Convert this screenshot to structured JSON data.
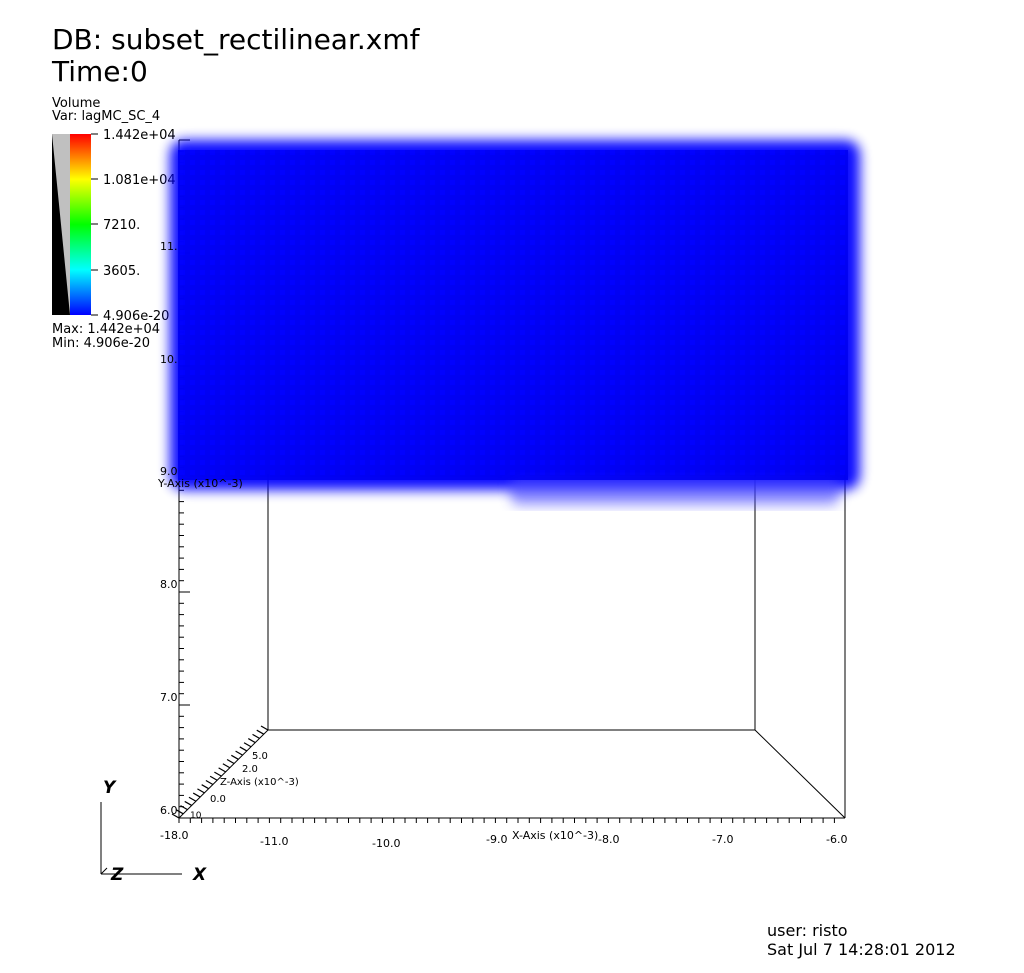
{
  "header": {
    "db": "DB: subset_rectilinear.xmf",
    "time": "Time:0"
  },
  "legend": {
    "plot_type": "Volume",
    "variable": "Var: lagMC_SC_4",
    "tick_labels": [
      "1.442e+04",
      "1.081e+04",
      "7210.",
      "3605.",
      "4.906e-20"
    ],
    "max_label": "Max:  1.442e+04",
    "min_label": "Min:  4.906e-20",
    "colors": {
      "high": "#ff0000",
      "mid_high": "#ffff00",
      "mid": "#00ff00",
      "mid_low": "#00ffff",
      "low": "#0000ff"
    }
  },
  "axes": {
    "x_label": "X-Axis (x10^-3)",
    "y_label": "Y-Axis (x10^-3)",
    "z_label": "Z-Axis (x10^-3)",
    "x_ticks": [
      "-18.0",
      "-11.0",
      "-10.0",
      "-9.0",
      "-8.0",
      "-7.0",
      "-6.0"
    ],
    "y_ticks": [
      "11.",
      "10.",
      "9.0",
      "8.0",
      "7.0",
      "6.0"
    ],
    "z_ticks": [
      "5.0",
      "2.0",
      "0.0",
      "10"
    ]
  },
  "triad": {
    "y": "Y",
    "z": "Z",
    "x": "X"
  },
  "footer": {
    "user": "user: risto",
    "date": "Sat Jul  7 14:28:01 2012"
  },
  "volume_color": "#0000ff"
}
